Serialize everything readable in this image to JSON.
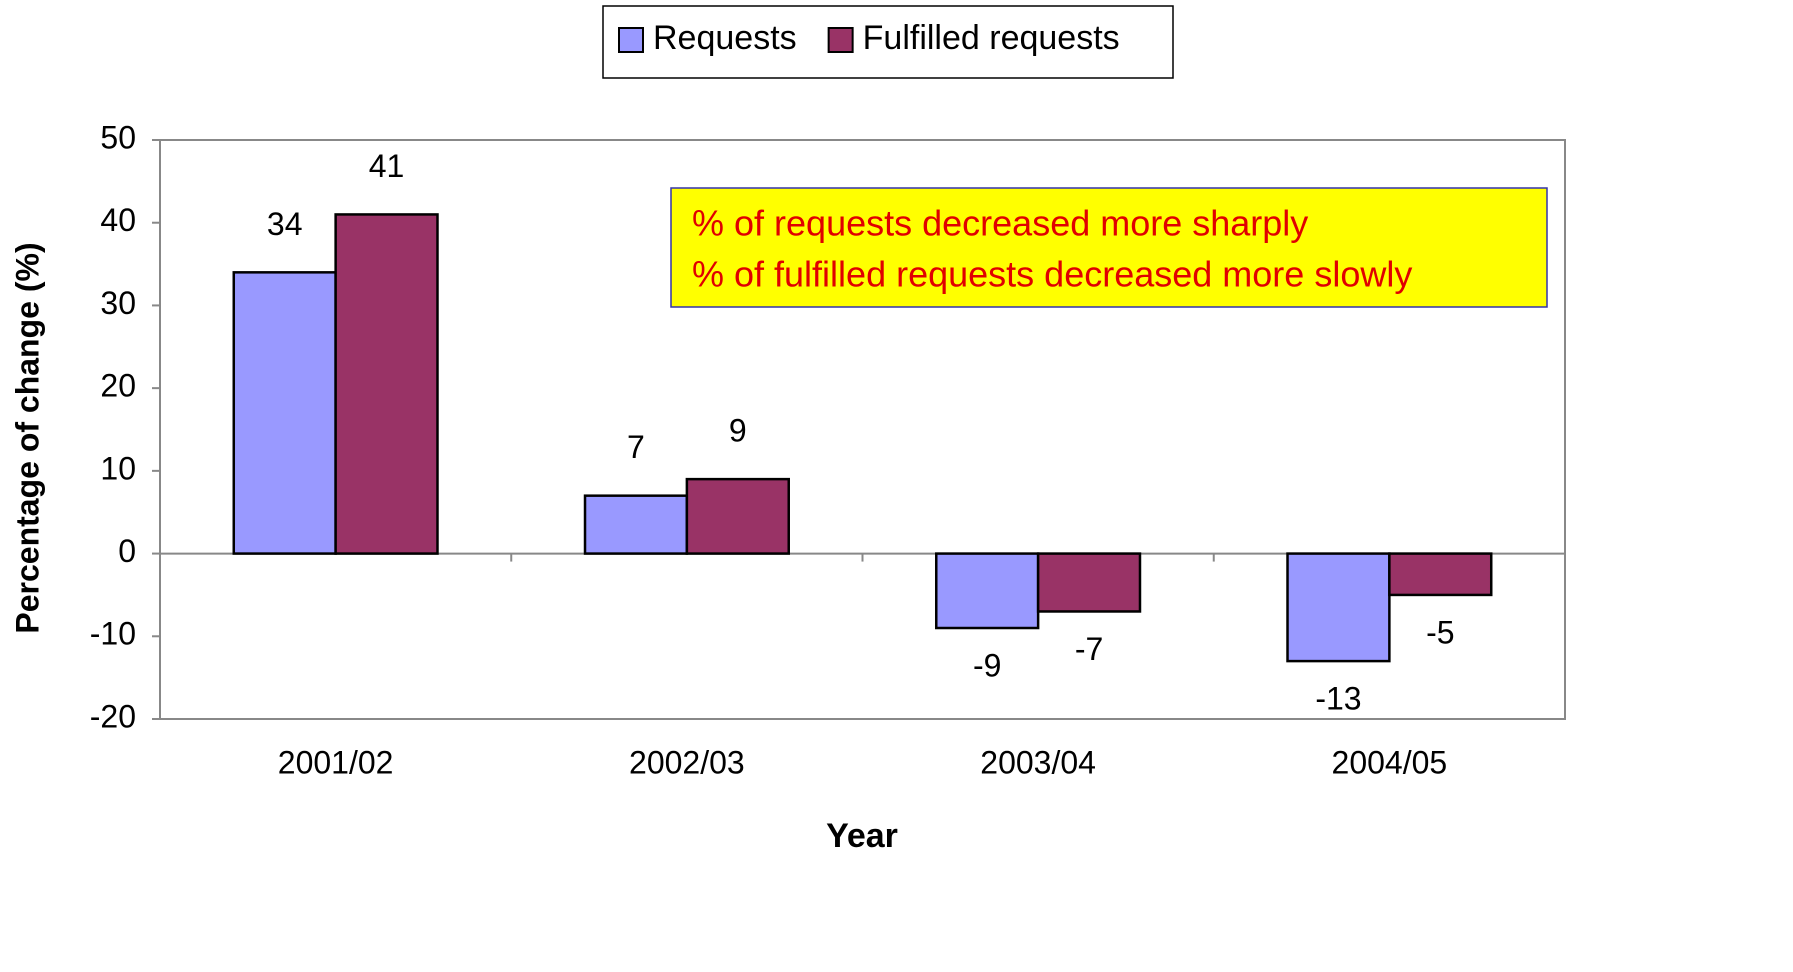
{
  "chart_data": {
    "type": "bar",
    "categories": [
      "2001/02",
      "2002/03",
      "2003/04",
      "2004/05"
    ],
    "series": [
      {
        "name": "Requests",
        "color": "#9999ff",
        "values": [
          34,
          7,
          -9,
          -13
        ]
      },
      {
        "name": "Fulfilled requests",
        "color": "#993366",
        "values": [
          41,
          9,
          -7,
          -5
        ]
      }
    ],
    "ylim": [
      -20,
      50
    ],
    "yticks": [
      -20,
      -10,
      0,
      10,
      20,
      30,
      40,
      50
    ],
    "x_label": "Year",
    "y_label": "Percentage of change (%)",
    "annotation": [
      "% of requests decreased more sharply",
      "% of fulfilled requests decreased more slowly"
    ],
    "legend": "top",
    "grid": false
  }
}
